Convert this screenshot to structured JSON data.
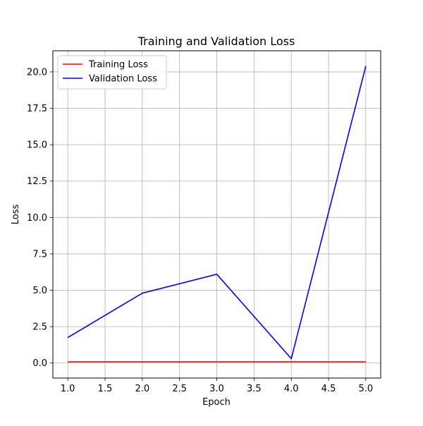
{
  "chart_data": {
    "type": "line",
    "title": "Training and Validation Loss",
    "xlabel": "Epoch",
    "ylabel": "Loss",
    "x": [
      1,
      2,
      3,
      4,
      5
    ],
    "xlim": [
      0.8,
      5.2
    ],
    "ylim": [
      -1.03,
      21.45
    ],
    "xticks": [
      1.0,
      1.5,
      2.0,
      2.5,
      3.0,
      3.5,
      4.0,
      4.5,
      5.0
    ],
    "xtick_labels": [
      "1.0",
      "1.5",
      "2.0",
      "2.5",
      "3.0",
      "3.5",
      "4.0",
      "4.5",
      "5.0"
    ],
    "yticks": [
      0.0,
      2.5,
      5.0,
      7.5,
      10.0,
      12.5,
      15.0,
      17.5,
      20.0
    ],
    "ytick_labels": [
      "0.0",
      "2.5",
      "5.0",
      "7.5",
      "10.0",
      "12.5",
      "15.0",
      "17.5",
      "20.0"
    ],
    "grid": true,
    "legend_position": "top-left",
    "series": [
      {
        "name": "Training Loss",
        "color": "#ff0000",
        "values": [
          0.08,
          0.08,
          0.08,
          0.08,
          0.08
        ]
      },
      {
        "name": "Validation Loss",
        "color": "#0000ff",
        "values": [
          1.75,
          4.8,
          6.1,
          0.3,
          20.4
        ]
      }
    ]
  }
}
